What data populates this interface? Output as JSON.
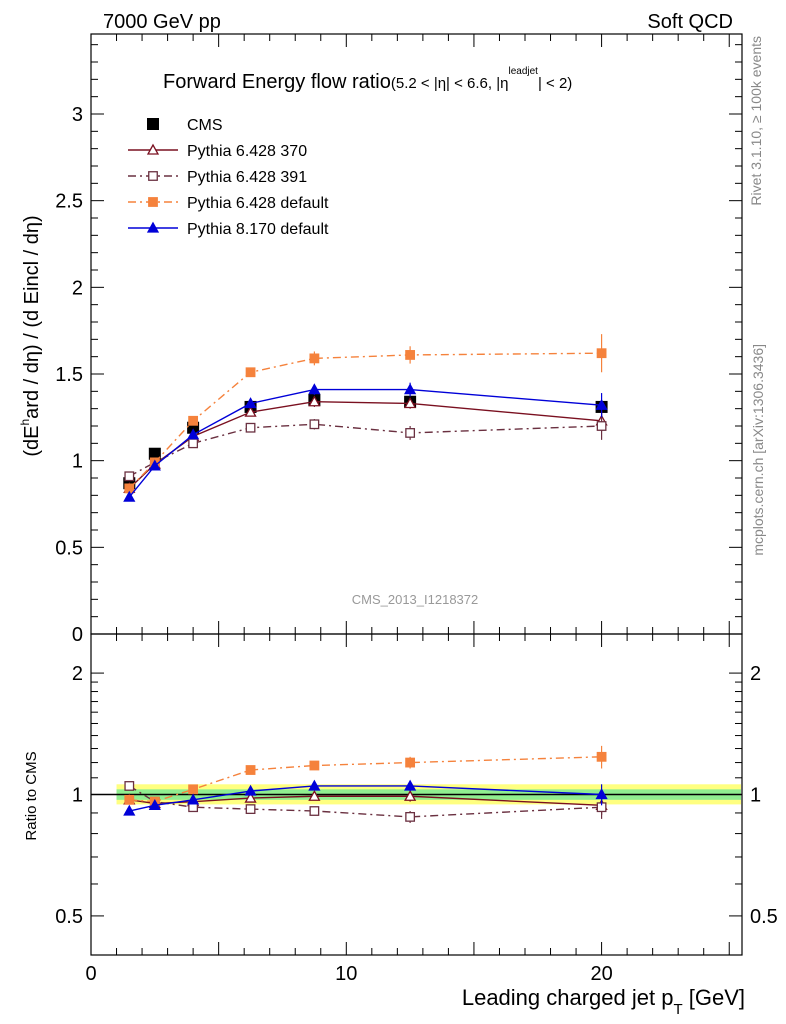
{
  "header": {
    "left": "7000 GeV pp",
    "right": "Soft QCD"
  },
  "side_labels": {
    "rivet": "Rivet 3.1.10, ≥ 100k events",
    "mcplots": "mcplots.cern.ch [arXiv:1306.3436]"
  },
  "chart_data": [
    {
      "type": "line",
      "title": "Forward Energy flow ratio",
      "title_cut": "(5.2 < |η| < 6.6, |η",
      "title_cut_sup": "leadjet",
      "title_cut_end": "| < 2)",
      "ylabel": "(dE",
      "ylabel_sup": "h",
      "ylabel_rest": "ard / dη) / (d E",
      "ylabel_rest2": "incl / dη)",
      "watermark": "CMS_2013_I1218372",
      "xlim": [
        0,
        25.5
      ],
      "ylim": [
        0,
        3.45
      ],
      "y_ticks": [
        "0",
        "0.5",
        "1",
        "1.5",
        "2",
        "2.5",
        "3"
      ],
      "legend_position": "top-left",
      "series": [
        {
          "name": "CMS",
          "color": "#000000",
          "style": "data",
          "x": [
            1.5,
            2.5,
            4.0,
            6.25,
            8.75,
            12.5,
            20.0
          ],
          "values": [
            0.87,
            1.04,
            1.19,
            1.31,
            1.35,
            1.34,
            1.31
          ],
          "errors": [
            0.02,
            0.02,
            0.02,
            0.02,
            0.03,
            0.03,
            0.03
          ]
        },
        {
          "name": "Pythia 6.428 370",
          "color": "#7a1020",
          "style": "solid-open-triangle",
          "x": [
            1.5,
            2.5,
            4.0,
            6.25,
            8.75,
            12.5,
            20.0
          ],
          "values": [
            0.84,
            0.98,
            1.14,
            1.28,
            1.34,
            1.33,
            1.23
          ],
          "errors": [
            0.01,
            0.01,
            0.01,
            0.02,
            0.03,
            0.03,
            0.06
          ]
        },
        {
          "name": "Pythia 6.428 391",
          "color": "#6a3040",
          "style": "dashdot-open-square",
          "x": [
            1.5,
            2.5,
            4.0,
            6.25,
            8.75,
            12.5,
            20.0
          ],
          "values": [
            0.91,
            0.99,
            1.1,
            1.19,
            1.21,
            1.16,
            1.2
          ],
          "errors": [
            0.01,
            0.01,
            0.01,
            0.02,
            0.03,
            0.04,
            0.08
          ]
        },
        {
          "name": "Pythia 6.428 default",
          "color": "#f5823c",
          "style": "dashdot-filled-square",
          "x": [
            1.5,
            2.5,
            4.0,
            6.25,
            8.75,
            12.5,
            20.0
          ],
          "values": [
            0.84,
            0.99,
            1.23,
            1.51,
            1.59,
            1.61,
            1.62
          ],
          "errors": [
            0.01,
            0.01,
            0.01,
            0.02,
            0.04,
            0.05,
            0.11
          ]
        },
        {
          "name": "Pythia 8.170 default",
          "color": "#0000d8",
          "style": "solid-filled-triangle",
          "x": [
            1.5,
            2.5,
            4.0,
            6.25,
            8.75,
            12.5,
            20.0
          ],
          "values": [
            0.79,
            0.97,
            1.15,
            1.33,
            1.41,
            1.41,
            1.32
          ],
          "errors": [
            0.01,
            0.01,
            0.01,
            0.02,
            0.03,
            0.04,
            0.07
          ]
        }
      ]
    },
    {
      "type": "line",
      "ylabel": "Ratio to CMS",
      "xlabel": "Leading charged jet p",
      "xlabel_sub": "T",
      "xlabel_unit": " [GeV]",
      "scale": "log",
      "xlim": [
        0,
        25.5
      ],
      "ylim": [
        0.4,
        2.5
      ],
      "x_ticks": [
        "0",
        "10",
        "20"
      ],
      "y_ticks": [
        "0.5",
        "1",
        "2"
      ],
      "band": {
        "x": [
          1.0,
          25.5
        ],
        "yellow": [
          0.945,
          1.06
        ],
        "green": [
          0.97,
          1.03
        ]
      },
      "series": [
        {
          "name": "Pythia 6.428 370",
          "color": "#7a1020",
          "style": "solid-open-triangle",
          "x": [
            1.5,
            2.5,
            4.0,
            6.25,
            8.75,
            12.5,
            20.0
          ],
          "values": [
            0.97,
            0.95,
            0.96,
            0.98,
            0.99,
            0.99,
            0.94
          ],
          "errors": [
            0.02,
            0.02,
            0.01,
            0.02,
            0.02,
            0.03,
            0.05
          ]
        },
        {
          "name": "Pythia 6.428 391",
          "color": "#6a3040",
          "style": "dashdot-open-square",
          "x": [
            1.5,
            2.5,
            4.0,
            6.25,
            8.75,
            12.5,
            20.0
          ],
          "values": [
            1.05,
            0.96,
            0.93,
            0.92,
            0.91,
            0.88,
            0.93
          ],
          "errors": [
            0.02,
            0.02,
            0.01,
            0.02,
            0.02,
            0.03,
            0.06
          ]
        },
        {
          "name": "Pythia 6.428 default",
          "color": "#f5823c",
          "style": "dashdot-filled-square",
          "x": [
            1.5,
            2.5,
            4.0,
            6.25,
            8.75,
            12.5,
            20.0
          ],
          "values": [
            0.97,
            0.96,
            1.03,
            1.15,
            1.18,
            1.2,
            1.24
          ],
          "errors": [
            0.02,
            0.02,
            0.01,
            0.02,
            0.03,
            0.04,
            0.08
          ]
        },
        {
          "name": "Pythia 8.170 default",
          "color": "#0000d8",
          "style": "solid-filled-triangle",
          "x": [
            1.5,
            2.5,
            4.0,
            6.25,
            8.75,
            12.5,
            20.0
          ],
          "values": [
            0.91,
            0.94,
            0.97,
            1.02,
            1.05,
            1.05,
            1.0
          ],
          "errors": [
            0.02,
            0.02,
            0.01,
            0.02,
            0.02,
            0.03,
            0.06
          ]
        }
      ]
    }
  ]
}
